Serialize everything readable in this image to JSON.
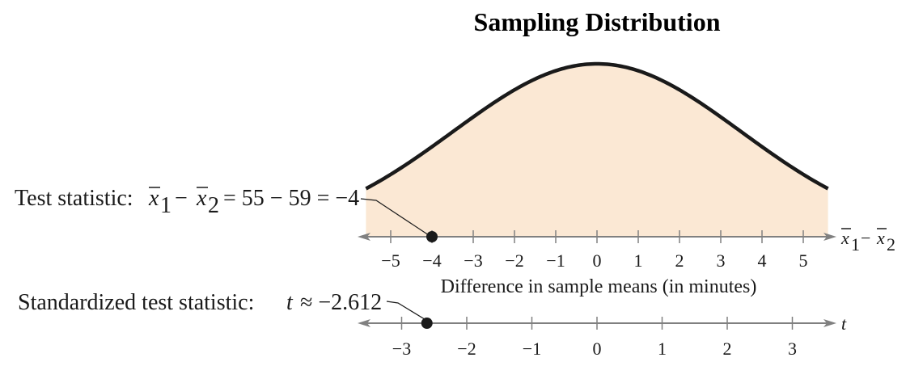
{
  "chart_data": {
    "type": "area",
    "title": "Sampling Distribution",
    "curve": "normal",
    "mean": 0,
    "curve_color": "#1a1a1a",
    "fill_color": "#fbe8d4",
    "axis_color": "#808080",
    "top_axis": {
      "ticks": [
        -5,
        -4,
        -3,
        -2,
        -1,
        0,
        1,
        2,
        3,
        4,
        5
      ],
      "tick_labels": [
        "−5",
        "−4",
        "−3",
        "−2",
        "−1",
        "0",
        "1",
        "2",
        "3",
        "4",
        "5"
      ],
      "xlabel": "Difference in sample means (in minutes)",
      "variable_label": "x̄₁ − x̄₂",
      "marked_value": -4
    },
    "bottom_axis": {
      "ticks": [
        -3,
        -2,
        -1,
        0,
        1,
        2,
        3
      ],
      "tick_labels": [
        "−3",
        "−2",
        "−1",
        "0",
        "1",
        "2",
        "3"
      ],
      "variable_label": "t",
      "marked_value": -2.612
    },
    "annotations": [
      {
        "text": "Test statistic: x̄₁ − x̄₂ = 55 − 59 = −4",
        "points_to": -4
      },
      {
        "text": "Standardized test statistic: t ≈ −2.612",
        "points_to": -2.612
      }
    ]
  }
}
